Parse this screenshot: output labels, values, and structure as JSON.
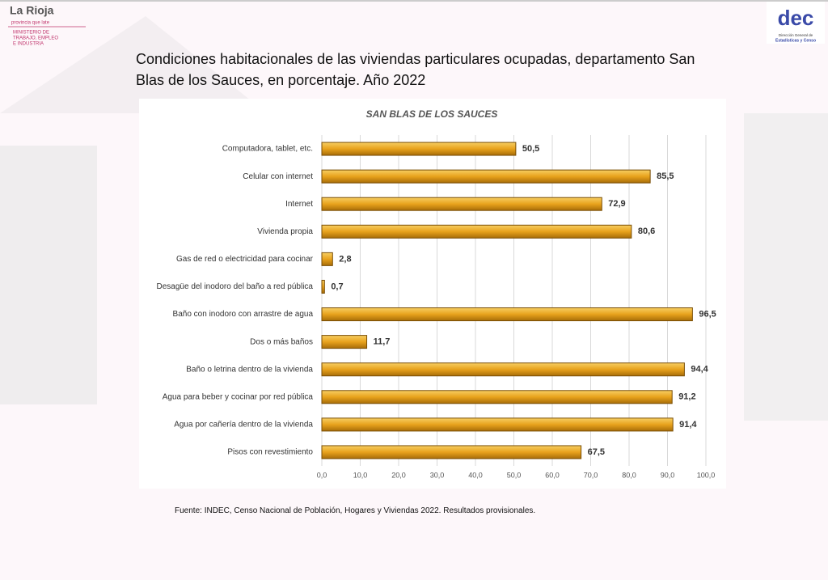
{
  "logos": {
    "left": [
      "La Rioja",
      "provincia que late",
      "MINISTERIO DE",
      "TRABAJO, EMPLEO",
      "E INDUSTRIA"
    ],
    "right": [
      "dec",
      "Dirección General de",
      "Estadísticas y Censo"
    ]
  },
  "chart_data": {
    "type": "bar",
    "orientation": "horizontal",
    "title": "Condiciones habitacionales de las viviendas particulares ocupadas, departamento San Blas de los Sauces, en porcentaje. Año 2022",
    "subtitle": "SAN BLAS DE LOS SAUCES",
    "categories": [
      "Computadora, tablet, etc.",
      "Celular con internet",
      "Internet",
      "Vivienda propia",
      "Gas de red o electricidad para cocinar",
      "Desagüe del inodoro del baño a red pública",
      "Baño con inodoro con arrastre de agua",
      "Dos o más baños",
      "Baño o letrina dentro de la vivienda",
      "Agua para beber y cocinar por red pública",
      "Agua por cañería dentro de la vivienda",
      "Pisos con revestimiento"
    ],
    "values": [
      50.5,
      85.5,
      72.9,
      80.6,
      2.8,
      0.7,
      96.5,
      11.7,
      94.4,
      91.2,
      91.4,
      67.5
    ],
    "value_labels": [
      "50,5",
      "85,5",
      "72,9",
      "80,6",
      "2,8",
      "0,7",
      "96,5",
      "11,7",
      "94,4",
      "91,2",
      "91,4",
      "67,5"
    ],
    "color": "#e8a21c",
    "xlim": [
      0,
      100
    ],
    "xticks": [
      {
        "value": 0,
        "label": "0,0"
      },
      {
        "value": 10,
        "label": "10,0"
      },
      {
        "value": 20,
        "label": "20,0"
      },
      {
        "value": 30,
        "label": "30,0"
      },
      {
        "value": 40,
        "label": "40,0"
      },
      {
        "value": 50,
        "label": "50,0"
      },
      {
        "value": 60,
        "label": "60,0"
      },
      {
        "value": 70,
        "label": "70,0"
      },
      {
        "value": 80,
        "label": "80,0"
      },
      {
        "value": 90,
        "label": "90,0"
      },
      {
        "value": 100,
        "label": "100,0"
      }
    ],
    "grid": true,
    "source": "Fuente: INDEC, Censo Nacional de Población, Hogares y Viviendas 2022. Resultados provisionales."
  }
}
